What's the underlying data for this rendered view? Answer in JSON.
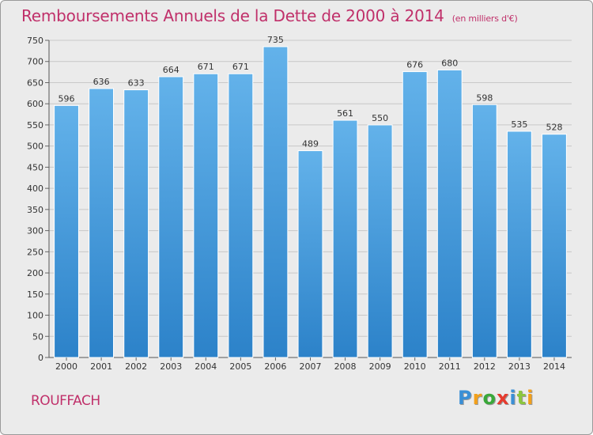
{
  "chart_data": {
    "type": "bar",
    "title": "Remboursements Annuels de la Dette de 2000 à 2014",
    "unit_note": "(en milliers d'€)",
    "categories": [
      "2000",
      "2001",
      "2002",
      "2003",
      "2004",
      "2005",
      "2006",
      "2007",
      "2008",
      "2009",
      "2010",
      "2011",
      "2012",
      "2013",
      "2014"
    ],
    "values": [
      596,
      636,
      633,
      664,
      671,
      671,
      735,
      489,
      561,
      550,
      676,
      680,
      598,
      535,
      528
    ],
    "ylim": [
      0,
      750
    ],
    "yticks": [
      0,
      50,
      100,
      150,
      200,
      250,
      300,
      350,
      400,
      450,
      500,
      550,
      600,
      650,
      700,
      750
    ],
    "xlabel": "",
    "ylabel": "",
    "grid": true,
    "bar_color": "#5aaae6"
  },
  "location": "ROUFFACH",
  "logo": {
    "letters": [
      "P",
      "r",
      "o",
      "x",
      "i",
      "t",
      "i"
    ],
    "colors": [
      "#3a8fd6",
      "#f2a01b",
      "#3aa83a",
      "#e63b2e",
      "#3a8fd6",
      "#8cc63f",
      "#f2a01b"
    ]
  }
}
